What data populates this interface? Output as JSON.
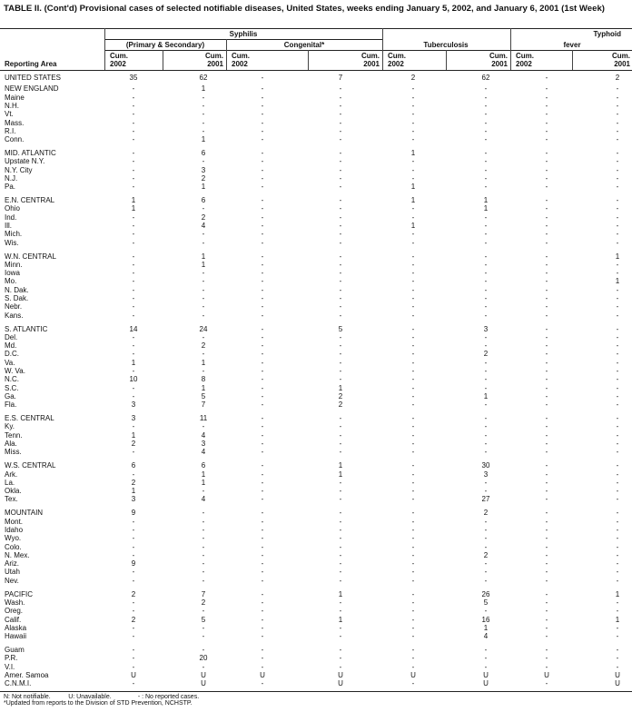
{
  "title": "TABLE II. (Cont'd) Provisional cases of selected notifiable diseases, United States, weeks ending January 5, 2002, and January 6, 2001 (1st Week)",
  "header": {
    "reporting_area": "Reporting Area",
    "syphilis": "Syphilis",
    "primary_secondary": "(Primary & Secondary)",
    "congenital": "Congenital*",
    "tuberculosis": "Tuberculosis",
    "typhoid_line1": "Typhoid",
    "typhoid_line2": "fever",
    "cum": "Cum.",
    "year_2002": "2002",
    "year_2001": "2001"
  },
  "groups": [
    [
      [
        "UNITED STATES",
        "35",
        "62",
        "-",
        "7",
        "2",
        "62",
        "-",
        "2"
      ]
    ],
    [
      [
        "NEW ENGLAND",
        "-",
        "1",
        "-",
        "-",
        "-",
        "-",
        "-",
        "-"
      ],
      [
        "Maine",
        "-",
        "-",
        "-",
        "-",
        "-",
        "-",
        "-",
        "-"
      ],
      [
        "N.H.",
        "-",
        "-",
        "-",
        "-",
        "-",
        "-",
        "-",
        "-"
      ],
      [
        "Vt.",
        "-",
        "-",
        "-",
        "-",
        "-",
        "-",
        "-",
        "-"
      ],
      [
        "Mass.",
        "-",
        "-",
        "-",
        "-",
        "-",
        "-",
        "-",
        "-"
      ],
      [
        "R.I.",
        "-",
        "-",
        "-",
        "-",
        "-",
        "-",
        "-",
        "-"
      ],
      [
        "Conn.",
        "-",
        "1",
        "-",
        "-",
        "-",
        "-",
        "-",
        "-"
      ]
    ],
    [
      [
        "MID. ATLANTIC",
        "-",
        "6",
        "-",
        "-",
        "1",
        "-",
        "-",
        "-"
      ],
      [
        "Upstate N.Y.",
        "-",
        "-",
        "-",
        "-",
        "-",
        "-",
        "-",
        "-"
      ],
      [
        "N.Y. City",
        "-",
        "3",
        "-",
        "-",
        "-",
        "-",
        "-",
        "-"
      ],
      [
        "N.J.",
        "-",
        "2",
        "-",
        "-",
        "-",
        "-",
        "-",
        "-"
      ],
      [
        "Pa.",
        "-",
        "1",
        "-",
        "-",
        "1",
        "-",
        "-",
        "-"
      ]
    ],
    [
      [
        "E.N. CENTRAL",
        "1",
        "6",
        "-",
        "-",
        "1",
        "1",
        "-",
        "-"
      ],
      [
        "Ohio",
        "1",
        "-",
        "-",
        "-",
        "-",
        "1",
        "-",
        "-"
      ],
      [
        "Ind.",
        "-",
        "2",
        "-",
        "-",
        "-",
        "-",
        "-",
        "-"
      ],
      [
        "Ill.",
        "-",
        "4",
        "-",
        "-",
        "1",
        "-",
        "-",
        "-"
      ],
      [
        "Mich.",
        "-",
        "-",
        "-",
        "-",
        "-",
        "-",
        "-",
        "-"
      ],
      [
        "Wis.",
        "-",
        "-",
        "-",
        "-",
        "-",
        "-",
        "-",
        "-"
      ]
    ],
    [
      [
        "W.N. CENTRAL",
        "-",
        "1",
        "-",
        "-",
        "-",
        "-",
        "-",
        "1"
      ],
      [
        "Minn.",
        "-",
        "1",
        "-",
        "-",
        "-",
        "-",
        "-",
        "-"
      ],
      [
        "Iowa",
        "-",
        "-",
        "-",
        "-",
        "-",
        "-",
        "-",
        "-"
      ],
      [
        "Mo.",
        "-",
        "-",
        "-",
        "-",
        "-",
        "-",
        "-",
        "1"
      ],
      [
        "N. Dak.",
        "-",
        "-",
        "-",
        "-",
        "-",
        "-",
        "-",
        "-"
      ],
      [
        "S. Dak.",
        "-",
        "-",
        "-",
        "-",
        "-",
        "-",
        "-",
        "-"
      ],
      [
        "Nebr.",
        "-",
        "-",
        "-",
        "-",
        "-",
        "-",
        "-",
        "-"
      ],
      [
        "Kans.",
        "-",
        "-",
        "-",
        "-",
        "-",
        "-",
        "-",
        "-"
      ]
    ],
    [
      [
        "S. ATLANTIC",
        "14",
        "24",
        "-",
        "5",
        "-",
        "3",
        "-",
        "-"
      ],
      [
        "Del.",
        "-",
        "-",
        "-",
        "-",
        "-",
        "-",
        "-",
        "-"
      ],
      [
        "Md.",
        "-",
        "2",
        "-",
        "-",
        "-",
        "-",
        "-",
        "-"
      ],
      [
        "D.C.",
        "-",
        "-",
        "-",
        "-",
        "-",
        "2",
        "-",
        "-"
      ],
      [
        "Va.",
        "1",
        "1",
        "-",
        "-",
        "-",
        "-",
        "-",
        "-"
      ],
      [
        "W. Va.",
        "-",
        "-",
        "-",
        "-",
        "-",
        "-",
        "-",
        "-"
      ],
      [
        "N.C.",
        "10",
        "8",
        "-",
        "-",
        "-",
        "-",
        "-",
        "-"
      ],
      [
        "S.C.",
        "-",
        "1",
        "-",
        "1",
        "-",
        "-",
        "-",
        "-"
      ],
      [
        "Ga.",
        "-",
        "5",
        "-",
        "2",
        "-",
        "1",
        "-",
        "-"
      ],
      [
        "Fla.",
        "3",
        "7",
        "-",
        "2",
        "-",
        "-",
        "-",
        "-"
      ]
    ],
    [
      [
        "E.S. CENTRAL",
        "3",
        "11",
        "-",
        "-",
        "-",
        "-",
        "-",
        "-"
      ],
      [
        "Ky.",
        "-",
        "-",
        "-",
        "-",
        "-",
        "-",
        "-",
        "-"
      ],
      [
        "Tenn.",
        "1",
        "4",
        "-",
        "-",
        "-",
        "-",
        "-",
        "-"
      ],
      [
        "Ala.",
        "2",
        "3",
        "-",
        "-",
        "-",
        "-",
        "-",
        "-"
      ],
      [
        "Miss.",
        "-",
        "4",
        "-",
        "-",
        "-",
        "-",
        "-",
        "-"
      ]
    ],
    [
      [
        "W.S. CENTRAL",
        "6",
        "6",
        "-",
        "1",
        "-",
        "30",
        "-",
        "-"
      ],
      [
        "Ark.",
        "-",
        "1",
        "-",
        "1",
        "-",
        "3",
        "-",
        "-"
      ],
      [
        "La.",
        "2",
        "1",
        "-",
        "-",
        "-",
        "-",
        "-",
        "-"
      ],
      [
        "Okla.",
        "1",
        "-",
        "-",
        "-",
        "-",
        "-",
        "-",
        "-"
      ],
      [
        "Tex.",
        "3",
        "4",
        "-",
        "-",
        "-",
        "27",
        "-",
        "-"
      ]
    ],
    [
      [
        "MOUNTAIN",
        "9",
        "-",
        "-",
        "-",
        "-",
        "2",
        "-",
        "-"
      ],
      [
        "Mont.",
        "-",
        "-",
        "-",
        "-",
        "-",
        "-",
        "-",
        "-"
      ],
      [
        "Idaho",
        "-",
        "-",
        "-",
        "-",
        "-",
        "-",
        "-",
        "-"
      ],
      [
        "Wyo.",
        "-",
        "-",
        "-",
        "-",
        "-",
        "-",
        "-",
        "-"
      ],
      [
        "Colo.",
        "-",
        "-",
        "-",
        "-",
        "-",
        "-",
        "-",
        "-"
      ],
      [
        "N. Mex.",
        "-",
        "-",
        "-",
        "-",
        "-",
        "2",
        "-",
        "-"
      ],
      [
        "Ariz.",
        "9",
        "-",
        "-",
        "-",
        "-",
        "-",
        "-",
        "-"
      ],
      [
        "Utah",
        "-",
        "-",
        "-",
        "-",
        "-",
        "-",
        "-",
        "-"
      ],
      [
        "Nev.",
        "-",
        "-",
        "-",
        "-",
        "-",
        "-",
        "-",
        "-"
      ]
    ],
    [
      [
        "PACIFIC",
        "2",
        "7",
        "-",
        "1",
        "-",
        "26",
        "-",
        "1"
      ],
      [
        "Wash.",
        "-",
        "2",
        "-",
        "-",
        "-",
        "5",
        "-",
        "-"
      ],
      [
        "Oreg.",
        "-",
        "-",
        "-",
        "-",
        "-",
        "-",
        "-",
        "-"
      ],
      [
        "Calif.",
        "2",
        "5",
        "-",
        "1",
        "-",
        "16",
        "-",
        "1"
      ],
      [
        "Alaska",
        "-",
        "-",
        "-",
        "-",
        "-",
        "1",
        "-",
        "-"
      ],
      [
        "Hawaii",
        "-",
        "-",
        "-",
        "-",
        "-",
        "4",
        "-",
        "-"
      ]
    ],
    [
      [
        "Guam",
        "-",
        "-",
        "-",
        "-",
        "-",
        "-",
        "-",
        "-"
      ],
      [
        "P.R.",
        "-",
        "20",
        "-",
        "-",
        "-",
        "-",
        "-",
        "-"
      ],
      [
        "V.I.",
        "-",
        "-",
        "-",
        "-",
        "-",
        "-",
        "-",
        "-"
      ],
      [
        "Amer. Samoa",
        "U",
        "U",
        "U",
        "U",
        "U",
        "U",
        "U",
        "U"
      ],
      [
        "C.N.M.I.",
        "-",
        "U",
        "-",
        "U",
        "-",
        "U",
        "-",
        "U"
      ]
    ]
  ],
  "footnotes": {
    "legend": "N: Not notifiable.          U: Unavailable.               - : No reported cases.",
    "note": "*Updated from reports to the Division of STD Prevention, NCHSTP."
  }
}
